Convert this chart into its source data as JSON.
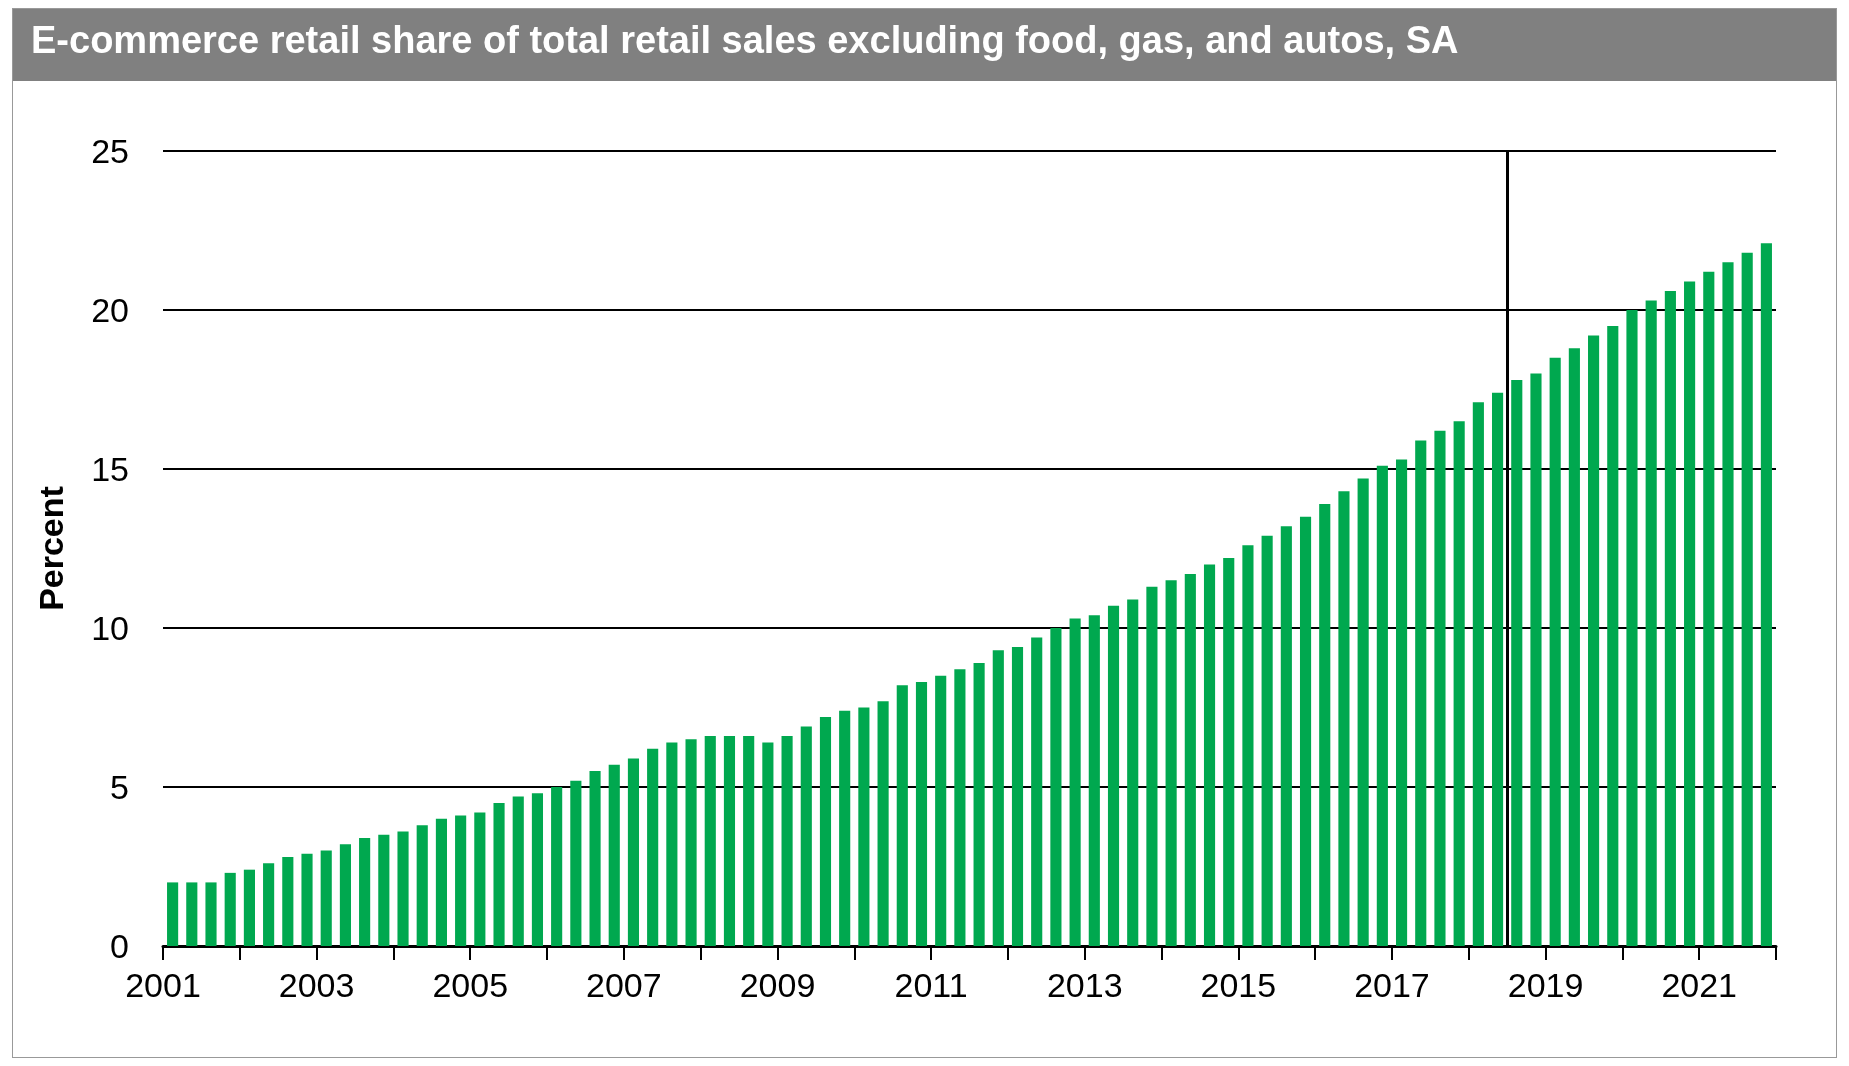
{
  "chart_data": {
    "type": "bar",
    "title": "E-commerce retail share of total retail sales excluding food, gas, and autos, SA",
    "ylabel": "Percent",
    "x": [
      2001.125,
      2001.375,
      2001.625,
      2001.875,
      2002.125,
      2002.375,
      2002.625,
      2002.875,
      2003.125,
      2003.375,
      2003.625,
      2003.875,
      2004.125,
      2004.375,
      2004.625,
      2004.875,
      2005.125,
      2005.375,
      2005.625,
      2005.875,
      2006.125,
      2006.375,
      2006.625,
      2006.875,
      2007.125,
      2007.375,
      2007.625,
      2007.875,
      2008.125,
      2008.375,
      2008.625,
      2008.875,
      2009.125,
      2009.375,
      2009.625,
      2009.875,
      2010.125,
      2010.375,
      2010.625,
      2010.875,
      2011.125,
      2011.375,
      2011.625,
      2011.875,
      2012.125,
      2012.375,
      2012.625,
      2012.875,
      2013.125,
      2013.375,
      2013.625,
      2013.875,
      2014.125,
      2014.375,
      2014.625,
      2014.875,
      2015.125,
      2015.375,
      2015.625,
      2015.875,
      2016.125,
      2016.375,
      2016.625,
      2016.875,
      2017.125,
      2017.375,
      2017.625,
      2017.875,
      2018.125,
      2018.375,
      2018.625,
      2018.875,
      2019.125,
      2019.375,
      2019.625,
      2019.875,
      2020.125,
      2020.375,
      2020.625,
      2020.875,
      2021.125,
      2021.375,
      2021.625,
      2021.875
    ],
    "values": [
      2.0,
      2.0,
      2.0,
      2.3,
      2.4,
      2.6,
      2.8,
      2.9,
      3.0,
      3.2,
      3.4,
      3.5,
      3.6,
      3.8,
      4.0,
      4.1,
      4.2,
      4.5,
      4.7,
      4.8,
      5.0,
      5.2,
      5.5,
      5.7,
      5.9,
      6.2,
      6.4,
      6.5,
      6.6,
      6.6,
      6.6,
      6.4,
      6.6,
      6.9,
      7.2,
      7.4,
      7.5,
      7.7,
      8.2,
      8.3,
      8.5,
      8.7,
      8.9,
      9.3,
      9.4,
      9.7,
      10.0,
      10.3,
      10.4,
      10.7,
      10.9,
      11.3,
      11.5,
      11.7,
      12.0,
      12.2,
      12.6,
      12.9,
      13.2,
      13.5,
      13.9,
      14.3,
      14.7,
      15.1,
      15.3,
      15.9,
      16.2,
      16.5,
      17.1,
      17.4,
      17.8,
      18.0,
      18.5,
      18.8,
      19.2,
      19.5,
      20.0,
      20.3,
      20.6,
      20.9,
      21.2,
      21.5,
      21.8,
      22.1
    ],
    "color": "#00a84f",
    "xlim": [
      2001,
      2022
    ],
    "xticks": [
      2001,
      {
        "value": 2002,
        "label": null
      },
      2003,
      {
        "value": 2004,
        "label": null
      },
      2005,
      {
        "value": 2006,
        "label": null
      },
      2007,
      {
        "value": 2008,
        "label": null
      },
      2009,
      {
        "value": 2010,
        "label": null
      },
      2011,
      {
        "value": 2012,
        "label": null
      },
      2013,
      {
        "value": 2014,
        "label": null
      },
      2015,
      {
        "value": 2016,
        "label": null
      },
      2017,
      {
        "value": 2018,
        "label": null
      },
      2019,
      {
        "value": 2020,
        "label": null
      },
      2021,
      {
        "value": 2022,
        "label": null
      }
    ],
    "ylim": [
      0,
      25
    ],
    "yticks": [
      0,
      5,
      10,
      15,
      20,
      25
    ],
    "grid": "y",
    "ref_lines": [
      {
        "axis": "x",
        "value": 2018.5,
        "color": "#000000"
      }
    ]
  }
}
